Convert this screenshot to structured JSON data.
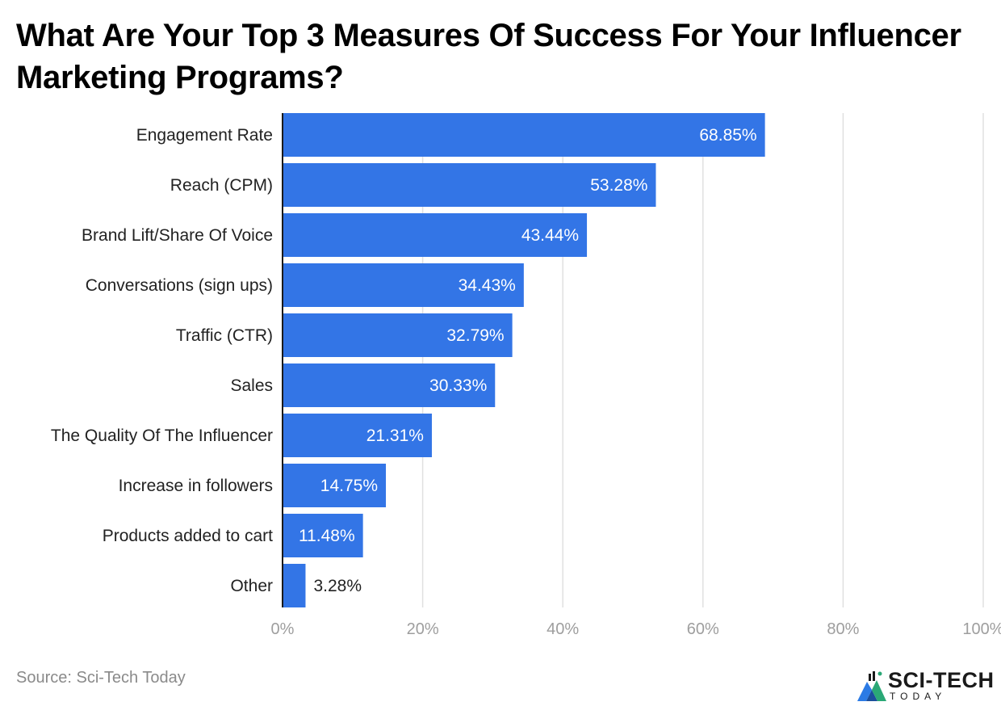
{
  "chart_data": {
    "type": "bar",
    "orientation": "horizontal",
    "title": "What Are Your Top 3 Measures Of Success For Your Influencer Marketing Programs?",
    "categories": [
      "Engagement Rate",
      "Reach (CPM)",
      "Brand Lift/Share Of Voice",
      "Conversations (sign ups)",
      "Traffic (CTR)",
      "Sales",
      "The Quality Of The Influencer",
      "Increase in followers",
      "Products added to cart",
      "Other"
    ],
    "values": [
      68.85,
      53.28,
      43.44,
      34.43,
      32.79,
      30.33,
      21.31,
      14.75,
      11.48,
      3.28
    ],
    "value_labels": [
      "68.85%",
      "53.28%",
      "43.44%",
      "34.43%",
      "32.79%",
      "30.33%",
      "21.31%",
      "14.75%",
      "11.48%",
      "3.28%"
    ],
    "xlim": [
      0,
      100
    ],
    "x_ticks": [
      0,
      20,
      40,
      60,
      80,
      100
    ],
    "x_tick_labels": [
      "0%",
      "20%",
      "40%",
      "60%",
      "80%",
      "100%"
    ],
    "grid": true,
    "legend": "none",
    "bar_color": "#3375e6"
  },
  "footer": {
    "source": "Source: Sci-Tech Today"
  },
  "logo": {
    "main": "SCI-TECH",
    "sub": "TODAY",
    "icon": "sci-tech-logo-icon"
  },
  "colors": {
    "bar": "#3375e6",
    "grid": "#e0e0e0",
    "axis": "#1a1a1a",
    "tick_text": "#9e9e9e",
    "source_text": "#8a8a8a"
  }
}
